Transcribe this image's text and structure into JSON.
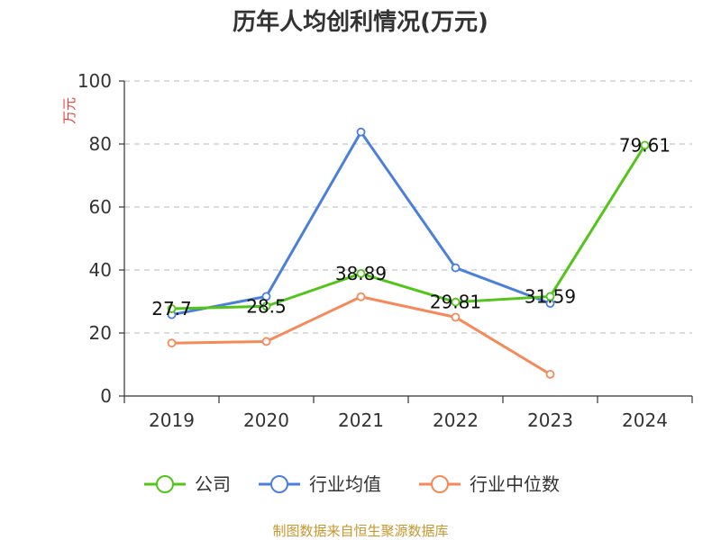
{
  "chart_data": {
    "type": "line",
    "title": "历年人均创利情况(万元)",
    "ylabel": "万元",
    "categories": [
      "2019",
      "2020",
      "2021",
      "2022",
      "2023",
      "2024"
    ],
    "ylim": [
      0,
      100
    ],
    "yticks": [
      0,
      20,
      40,
      60,
      80,
      100
    ],
    "grid": true,
    "legend_position": "bottom",
    "series": [
      {
        "name": "公司",
        "color": "#52c41a",
        "values": [
          27.7,
          28.5,
          38.89,
          29.81,
          31.59,
          79.61
        ],
        "labels": [
          "27.7",
          "28.5",
          "38.89",
          "29.81",
          "31.59",
          "79.61"
        ]
      },
      {
        "name": "行业均值",
        "color": "#4a7fdc",
        "values": [
          25.8,
          31.6,
          83.8,
          40.7,
          29.4,
          null
        ]
      },
      {
        "name": "行业中位数",
        "color": "#f5895a",
        "values": [
          16.8,
          17.3,
          31.5,
          25.0,
          6.9,
          null
        ]
      }
    ]
  },
  "source_text": "制图数据来自恒生聚源数据库"
}
